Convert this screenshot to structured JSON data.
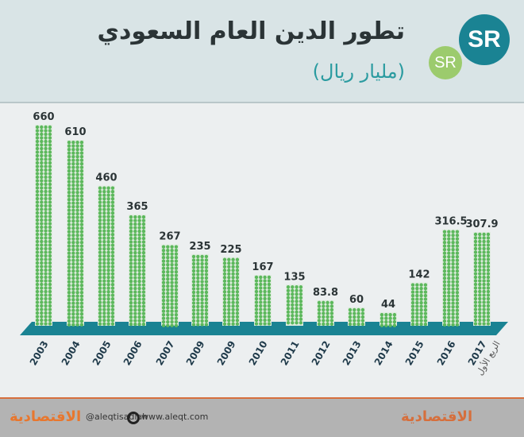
{
  "header": {
    "title": "تطور الدين العام السعودي",
    "subtitle": "(مليار ريال)",
    "logo_big": "SR",
    "logo_small": "SR"
  },
  "chart_data": {
    "type": "bar",
    "title": "تطور الدين العام السعودي",
    "ylabel": "مليار ريال",
    "ylim": [
      0,
      660
    ],
    "categories": [
      "2003",
      "2004",
      "2005",
      "2006",
      "2007",
      "2009",
      "2009",
      "2010",
      "2011",
      "2012",
      "2013",
      "2014",
      "2015",
      "2016",
      "2017"
    ],
    "values": [
      660,
      610,
      460,
      365,
      267,
      235,
      225,
      167,
      135,
      83.8,
      60,
      44,
      142,
      316.5,
      307.9
    ],
    "labels": [
      "660",
      "610",
      "460",
      "365",
      "267",
      "235",
      "225",
      "167",
      "135",
      "83.8",
      "60",
      "44",
      "142",
      "316.5",
      "307.9"
    ],
    "annotation": "الربع الأول",
    "colors": {
      "bar": "#5cb85c",
      "platform": "#1a8393"
    }
  },
  "footer": {
    "twitter": "@aleqtisadiah",
    "website": "www.aleqt.com",
    "brand": "الاقتصادية"
  }
}
